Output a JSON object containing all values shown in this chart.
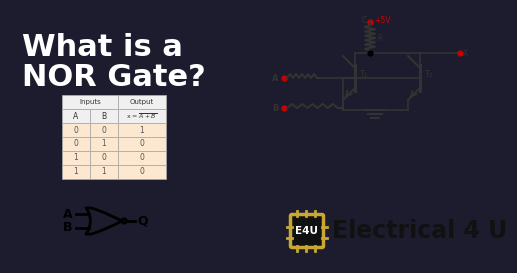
{
  "bg_color": "#1c1c2e",
  "title_line1": "What is a",
  "title_line2": "NOR Gate?",
  "title_color": "#ffffff",
  "title_fontsize": 22,
  "table_header_bg": "#f0f0f0",
  "table_row_bg": "#fce8d0",
  "table_border": "#aaaaaa",
  "table_data": [
    [
      0,
      0,
      1
    ],
    [
      0,
      1,
      0
    ],
    [
      1,
      0,
      0
    ],
    [
      1,
      1,
      0
    ]
  ],
  "gate_label_A": "A",
  "gate_label_B": "B",
  "gate_label_Q": "Q",
  "gate_color": "#000000",
  "e4u_text": "Electrical 4 U",
  "e4u_fontsize": 17,
  "e4u_color": "#111111",
  "circuit_vcc": "+5V",
  "wire_color": "#333333",
  "dot_color": "#cc0000",
  "vcc_color": "#cc0000",
  "chip_bg": "#111111",
  "chip_border": "#c8a832",
  "chip_text": "E4U"
}
